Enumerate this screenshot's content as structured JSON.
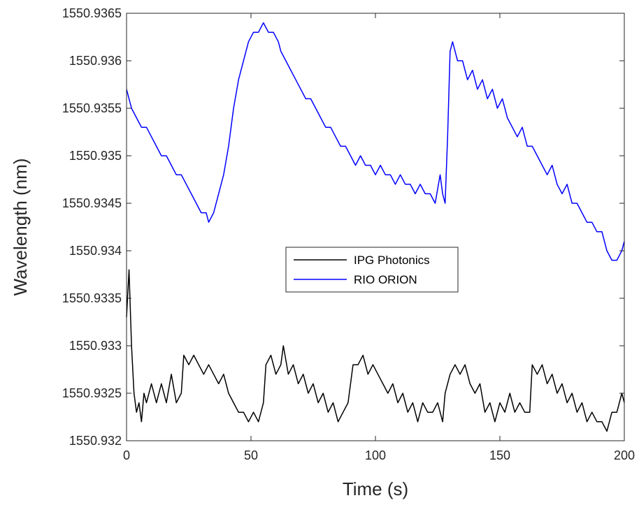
{
  "chart_data": {
    "type": "line",
    "xlabel": "Time (s)",
    "ylabel": "Wavelength (nm)",
    "xlim": [
      0,
      200
    ],
    "ylim": [
      1550.932,
      1550.9365
    ],
    "xticks": [
      0,
      50,
      100,
      150,
      200
    ],
    "xtick_labels": [
      "0",
      "50",
      "100",
      "150",
      "200"
    ],
    "yticks": [
      1550.932,
      1550.9325,
      1550.933,
      1550.9335,
      1550.934,
      1550.9345,
      1550.935,
      1550.9355,
      1550.936,
      1550.9365
    ],
    "ytick_labels": [
      "1550.932",
      "1550.9325",
      "1550.933",
      "1550.9335",
      "1550.934",
      "1550.9345",
      "1550.935",
      "1550.9355",
      "1550.936",
      "1550.9365"
    ],
    "grid": false,
    "legend_position": "center",
    "series": [
      {
        "name": "IPG Photonics",
        "color": "#000000",
        "x": [
          0,
          1,
          2,
          3,
          4,
          5,
          6,
          7,
          8,
          10,
          12,
          14,
          16,
          18,
          20,
          22,
          23,
          25,
          27,
          29,
          31,
          33,
          35,
          37,
          39,
          41,
          43,
          45,
          47,
          49,
          51,
          53,
          55,
          56,
          58,
          60,
          62,
          63,
          65,
          67,
          69,
          71,
          73,
          75,
          77,
          79,
          81,
          83,
          85,
          87,
          89,
          91,
          93,
          95,
          97,
          99,
          101,
          103,
          105,
          107,
          109,
          111,
          113,
          115,
          117,
          119,
          121,
          123,
          125,
          127,
          128,
          130,
          132,
          134,
          136,
          138,
          140,
          142,
          144,
          146,
          148,
          150,
          152,
          154,
          156,
          158,
          160,
          162,
          163,
          165,
          167,
          169,
          171,
          173,
          175,
          177,
          179,
          181,
          183,
          185,
          187,
          189,
          191,
          193,
          195,
          197,
          199,
          200
        ],
        "y": [
          1550.9333,
          1550.9338,
          1550.933,
          1550.9325,
          1550.9323,
          1550.9324,
          1550.9322,
          1550.9325,
          1550.9324,
          1550.9326,
          1550.9324,
          1550.9326,
          1550.9324,
          1550.9327,
          1550.9324,
          1550.9325,
          1550.9329,
          1550.9328,
          1550.9329,
          1550.9328,
          1550.9327,
          1550.9328,
          1550.9327,
          1550.9326,
          1550.9327,
          1550.9325,
          1550.9324,
          1550.9323,
          1550.9323,
          1550.9322,
          1550.9323,
          1550.9322,
          1550.9324,
          1550.9328,
          1550.9329,
          1550.9327,
          1550.9328,
          1550.933,
          1550.9327,
          1550.9328,
          1550.9326,
          1550.9327,
          1550.9325,
          1550.9326,
          1550.9324,
          1550.9325,
          1550.9323,
          1550.9324,
          1550.9322,
          1550.9323,
          1550.9324,
          1550.9328,
          1550.9328,
          1550.9329,
          1550.9327,
          1550.9328,
          1550.9327,
          1550.9326,
          1550.9325,
          1550.9326,
          1550.9324,
          1550.9325,
          1550.9323,
          1550.9324,
          1550.9322,
          1550.9324,
          1550.9323,
          1550.9323,
          1550.9324,
          1550.9322,
          1550.9325,
          1550.9327,
          1550.9328,
          1550.9327,
          1550.9328,
          1550.9326,
          1550.9325,
          1550.9326,
          1550.9323,
          1550.9324,
          1550.9322,
          1550.9324,
          1550.9323,
          1550.9325,
          1550.9323,
          1550.9324,
          1550.9323,
          1550.9323,
          1550.9328,
          1550.9327,
          1550.9328,
          1550.9326,
          1550.9327,
          1550.9325,
          1550.9326,
          1550.9324,
          1550.9325,
          1550.9323,
          1550.9324,
          1550.9322,
          1550.9323,
          1550.9322,
          1550.9322,
          1550.9321,
          1550.9323,
          1550.9323,
          1550.9325,
          1550.9324
        ]
      },
      {
        "name": "RIO ORION",
        "color": "#0000ff",
        "x": [
          0,
          1,
          2,
          4,
          6,
          8,
          10,
          12,
          14,
          16,
          18,
          20,
          22,
          24,
          26,
          28,
          30,
          32,
          33,
          35,
          37,
          39,
          41,
          43,
          45,
          47,
          49,
          51,
          53,
          55,
          57,
          59,
          61,
          62,
          64,
          66,
          68,
          70,
          72,
          74,
          76,
          78,
          80,
          82,
          84,
          86,
          88,
          90,
          92,
          94,
          96,
          98,
          100,
          102,
          104,
          106,
          108,
          110,
          112,
          114,
          116,
          118,
          120,
          122,
          124,
          126,
          127,
          128,
          129,
          130,
          131,
          133,
          135,
          137,
          139,
          141,
          143,
          145,
          147,
          149,
          151,
          153,
          155,
          157,
          159,
          161,
          163,
          165,
          167,
          169,
          171,
          173,
          175,
          177,
          179,
          181,
          183,
          185,
          187,
          189,
          191,
          193,
          195,
          197,
          199,
          200
        ],
        "y": [
          1550.9357,
          1550.9356,
          1550.9355,
          1550.9354,
          1550.9353,
          1550.9353,
          1550.9352,
          1550.9351,
          1550.935,
          1550.935,
          1550.9349,
          1550.9348,
          1550.9348,
          1550.9347,
          1550.9346,
          1550.9345,
          1550.9344,
          1550.9344,
          1550.9343,
          1550.9344,
          1550.9346,
          1550.9348,
          1550.9351,
          1550.9355,
          1550.9358,
          1550.936,
          1550.9362,
          1550.9363,
          1550.9363,
          1550.9364,
          1550.9363,
          1550.9363,
          1550.9362,
          1550.9361,
          1550.936,
          1550.9359,
          1550.9358,
          1550.9357,
          1550.9356,
          1550.9356,
          1550.9355,
          1550.9354,
          1550.9353,
          1550.9353,
          1550.9352,
          1550.9351,
          1550.9351,
          1550.935,
          1550.9349,
          1550.935,
          1550.9349,
          1550.9349,
          1550.9348,
          1550.9349,
          1550.9348,
          1550.9348,
          1550.9347,
          1550.9348,
          1550.9347,
          1550.9347,
          1550.9346,
          1550.9347,
          1550.9346,
          1550.9346,
          1550.9345,
          1550.9348,
          1550.9346,
          1550.9345,
          1550.9352,
          1550.9361,
          1550.9362,
          1550.936,
          1550.936,
          1550.9358,
          1550.9359,
          1550.9357,
          1550.9358,
          1550.9356,
          1550.9357,
          1550.9355,
          1550.9356,
          1550.9354,
          1550.9353,
          1550.9352,
          1550.9353,
          1550.9351,
          1550.9351,
          1550.935,
          1550.9349,
          1550.9348,
          1550.9349,
          1550.9347,
          1550.9346,
          1550.9347,
          1550.9345,
          1550.9345,
          1550.9344,
          1550.9343,
          1550.9343,
          1550.9342,
          1550.9342,
          1550.934,
          1550.9339,
          1550.9339,
          1550.934,
          1550.9341
        ]
      }
    ]
  }
}
